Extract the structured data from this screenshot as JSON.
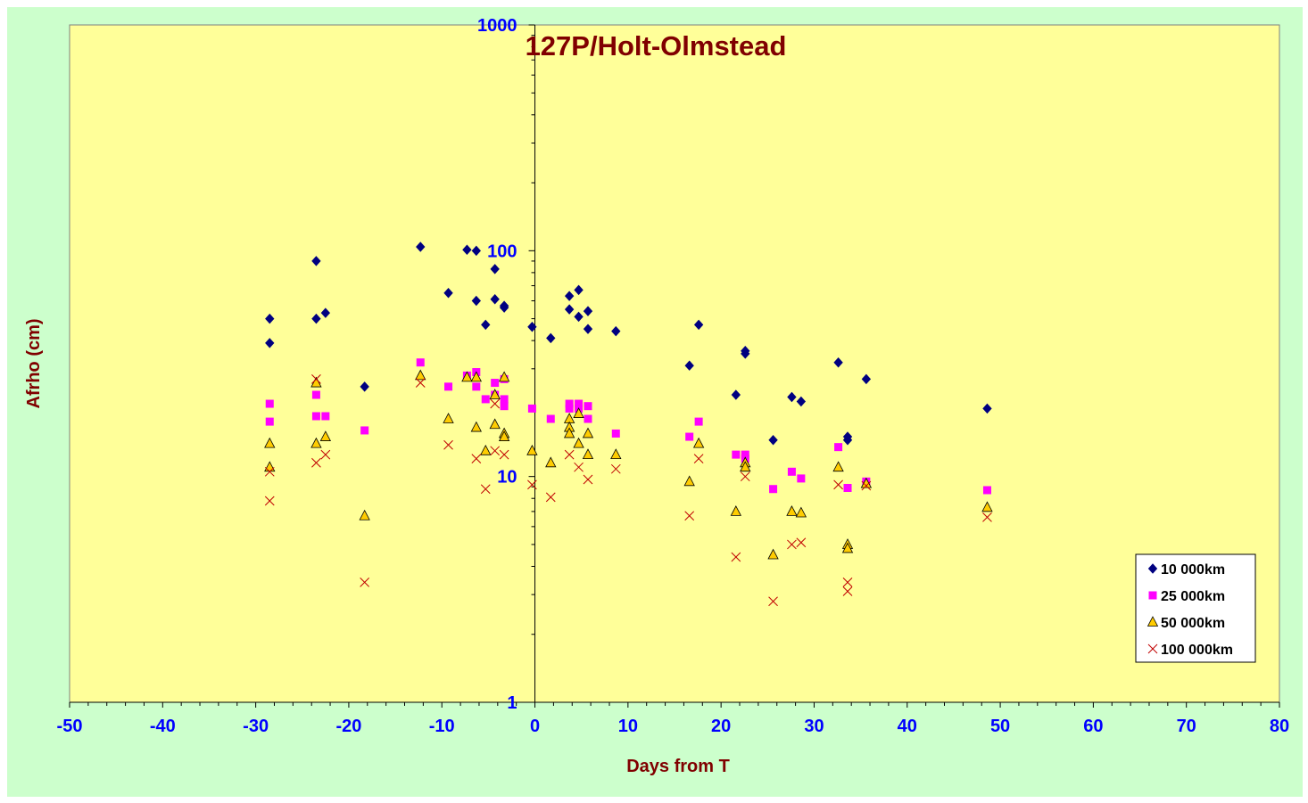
{
  "chart_data": {
    "type": "scatter",
    "title": "127P/Holt-Olmstead",
    "xlabel": "Days from T",
    "ylabel": "Afrho (cm)",
    "xlim": [
      -50,
      80
    ],
    "ylim": [
      1,
      1000
    ],
    "yscale": "log",
    "x_ticks": [
      -50,
      -40,
      -30,
      -20,
      -10,
      0,
      10,
      20,
      30,
      40,
      50,
      60,
      70,
      80
    ],
    "y_ticks": [
      1,
      10,
      100,
      1000
    ],
    "grid": false,
    "legend_position": "bottom-right",
    "plot_background": "#ffff99",
    "chart_background": "#ccffcc",
    "series": [
      {
        "name": "10 000km",
        "marker": "diamond",
        "color": "#000080",
        "points": [
          [
            -28.5,
            50
          ],
          [
            -28.5,
            39
          ],
          [
            -23.5,
            90
          ],
          [
            -23.5,
            50
          ],
          [
            -22.5,
            53
          ],
          [
            -18.3,
            25
          ],
          [
            -12.3,
            104
          ],
          [
            -9.3,
            65
          ],
          [
            -7.3,
            101
          ],
          [
            -6.3,
            100
          ],
          [
            -6.3,
            60
          ],
          [
            -5.3,
            47
          ],
          [
            -4.3,
            83
          ],
          [
            -4.3,
            61
          ],
          [
            -3.3,
            56
          ],
          [
            -3.3,
            57
          ],
          [
            -0.3,
            46
          ],
          [
            1.7,
            41
          ],
          [
            3.7,
            63
          ],
          [
            3.7,
            55
          ],
          [
            4.7,
            67
          ],
          [
            4.7,
            51
          ],
          [
            5.7,
            54
          ],
          [
            5.7,
            45
          ],
          [
            8.7,
            44
          ],
          [
            16.6,
            31
          ],
          [
            17.6,
            47
          ],
          [
            21.6,
            23
          ],
          [
            22.6,
            36
          ],
          [
            22.6,
            35
          ],
          [
            25.6,
            14.5
          ],
          [
            27.6,
            22.5
          ],
          [
            28.6,
            21.5
          ],
          [
            32.6,
            32
          ],
          [
            33.6,
            15
          ],
          [
            33.6,
            14.5
          ],
          [
            35.6,
            27
          ],
          [
            48.6,
            20
          ]
        ]
      },
      {
        "name": "25 000km",
        "marker": "square",
        "color": "#ff00ff",
        "points": [
          [
            -28.5,
            21
          ],
          [
            -28.5,
            17.5
          ],
          [
            -23.5,
            23
          ],
          [
            -23.5,
            18.5
          ],
          [
            -22.5,
            18.5
          ],
          [
            -18.3,
            16
          ],
          [
            -12.3,
            32
          ],
          [
            -9.3,
            25
          ],
          [
            -7.3,
            28
          ],
          [
            -6.3,
            29
          ],
          [
            -6.3,
            25
          ],
          [
            -5.3,
            22
          ],
          [
            -4.3,
            26
          ],
          [
            -4.3,
            23
          ],
          [
            -3.3,
            27
          ],
          [
            -3.3,
            22
          ],
          [
            -3.3,
            20.5
          ],
          [
            -0.3,
            20
          ],
          [
            1.7,
            18
          ],
          [
            3.7,
            21
          ],
          [
            3.7,
            20
          ],
          [
            4.7,
            21
          ],
          [
            4.7,
            20
          ],
          [
            5.7,
            20.5
          ],
          [
            5.7,
            18
          ],
          [
            8.7,
            15.5
          ],
          [
            16.6,
            15
          ],
          [
            17.6,
            17.5
          ],
          [
            21.6,
            12.5
          ],
          [
            22.6,
            12.5
          ],
          [
            22.6,
            12
          ],
          [
            25.6,
            8.8
          ],
          [
            27.6,
            10.5
          ],
          [
            28.6,
            9.8
          ],
          [
            32.6,
            13.5
          ],
          [
            33.6,
            8.9
          ],
          [
            35.6,
            9.5
          ],
          [
            48.6,
            8.7
          ]
        ]
      },
      {
        "name": "50 000km",
        "marker": "triangle",
        "color": "#ffcc00",
        "points": [
          [
            -28.5,
            14
          ],
          [
            -28.5,
            11
          ],
          [
            -23.5,
            26
          ],
          [
            -23.5,
            14
          ],
          [
            -22.5,
            15
          ],
          [
            -18.3,
            6.7
          ],
          [
            -12.3,
            28
          ],
          [
            -9.3,
            18
          ],
          [
            -7.3,
            27.5
          ],
          [
            -6.3,
            27.5
          ],
          [
            -6.3,
            16.5
          ],
          [
            -5.3,
            13
          ],
          [
            -4.3,
            23
          ],
          [
            -4.3,
            17
          ],
          [
            -3.3,
            27.5
          ],
          [
            -3.3,
            15.5
          ],
          [
            -3.3,
            15
          ],
          [
            -0.3,
            13
          ],
          [
            1.7,
            11.5
          ],
          [
            3.7,
            18
          ],
          [
            3.7,
            16.5
          ],
          [
            3.7,
            15.5
          ],
          [
            4.7,
            19
          ],
          [
            4.7,
            14
          ],
          [
            5.7,
            15.5
          ],
          [
            5.7,
            12.5
          ],
          [
            8.7,
            12.5
          ],
          [
            16.6,
            9.5
          ],
          [
            17.6,
            14
          ],
          [
            21.6,
            7
          ],
          [
            22.6,
            11.5
          ],
          [
            22.6,
            11
          ],
          [
            25.6,
            4.5
          ],
          [
            27.6,
            7
          ],
          [
            28.6,
            6.9
          ],
          [
            32.6,
            11
          ],
          [
            33.6,
            5
          ],
          [
            33.6,
            4.8
          ],
          [
            35.6,
            9.3
          ],
          [
            48.6,
            7.3
          ]
        ]
      },
      {
        "name": "100 000km",
        "marker": "x",
        "color": "#c00000",
        "points": [
          [
            -28.5,
            10.5
          ],
          [
            -28.5,
            7.8
          ],
          [
            -23.5,
            27
          ],
          [
            -23.5,
            11.5
          ],
          [
            -22.5,
            12.5
          ],
          [
            -18.3,
            3.4
          ],
          [
            -12.3,
            26
          ],
          [
            -9.3,
            13.8
          ],
          [
            -6.3,
            12
          ],
          [
            -5.3,
            8.8
          ],
          [
            -4.3,
            13
          ],
          [
            -4.3,
            21
          ],
          [
            -3.3,
            12.5
          ],
          [
            -0.3,
            9.2
          ],
          [
            1.7,
            8.1
          ],
          [
            3.7,
            12.5
          ],
          [
            4.7,
            11
          ],
          [
            5.7,
            9.7
          ],
          [
            8.7,
            10.8
          ],
          [
            16.6,
            6.7
          ],
          [
            17.6,
            12
          ],
          [
            21.6,
            4.4
          ],
          [
            22.6,
            10
          ],
          [
            25.6,
            2.8
          ],
          [
            27.6,
            5
          ],
          [
            28.6,
            5.1
          ],
          [
            32.6,
            9.2
          ],
          [
            33.6,
            3.4
          ],
          [
            33.6,
            3.1
          ],
          [
            35.6,
            9.1
          ],
          [
            48.6,
            6.6
          ]
        ]
      }
    ]
  }
}
